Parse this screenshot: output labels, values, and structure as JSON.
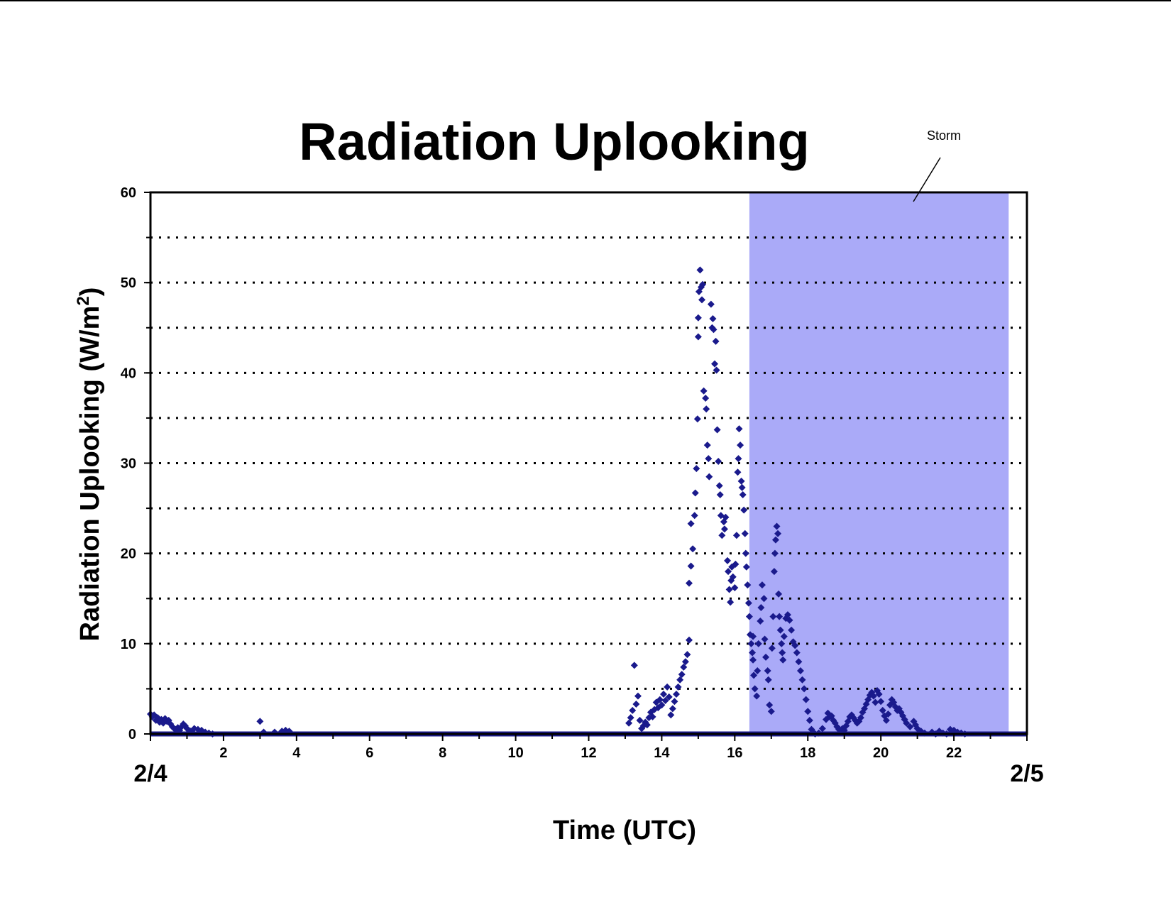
{
  "chart_data": {
    "type": "scatter",
    "title": "Radiation Uplooking",
    "xlabel": "Time (UTC)",
    "ylabel": "Radiation Uplooking (W/m",
    "ylabel_sup": "2",
    "ylabel_end": ")",
    "xlim": [
      0,
      24
    ],
    "ylim": [
      0,
      60
    ],
    "x_ticks": [
      "2",
      "4",
      "6",
      "8",
      "10",
      "12",
      "14",
      "16",
      "18",
      "20",
      "22"
    ],
    "y_ticks": [
      "0",
      "10",
      "20",
      "30",
      "40",
      "50",
      "60"
    ],
    "gridlines_y": [
      5,
      10,
      15,
      20,
      25,
      30,
      35,
      40,
      45,
      50,
      55
    ],
    "grid": "horizontal dotted",
    "start_date": "2/4",
    "end_date": "2/5",
    "marker_color": "#1a1a8c",
    "shaded_region": {
      "label": "Storm",
      "x_start": 16.4,
      "x_end": 23.5,
      "color": "#aaaaf8"
    },
    "series": [
      {
        "marker": "diamond",
        "points": [
          [
            0.0,
            2.2
          ],
          [
            0.05,
            1.9
          ],
          [
            0.1,
            2.1
          ],
          [
            0.15,
            1.5
          ],
          [
            0.2,
            1.8
          ],
          [
            0.25,
            1.3
          ],
          [
            0.3,
            1.6
          ],
          [
            0.35,
            1.2
          ],
          [
            0.4,
            1.7
          ],
          [
            0.45,
            1.4
          ],
          [
            0.5,
            1.5
          ],
          [
            0.55,
            1.1
          ],
          [
            0.6,
            0.8
          ],
          [
            0.65,
            0.6
          ],
          [
            0.7,
            0.5
          ],
          [
            0.75,
            0.7
          ],
          [
            0.8,
            0.4
          ],
          [
            0.85,
            0.8
          ],
          [
            0.9,
            1.1
          ],
          [
            0.95,
            0.9
          ],
          [
            1.0,
            0.6
          ],
          [
            1.05,
            0.4
          ],
          [
            1.1,
            0.3
          ],
          [
            1.2,
            0.6
          ],
          [
            1.3,
            0.5
          ],
          [
            1.4,
            0.4
          ],
          [
            1.5,
            0.2
          ],
          [
            1.6,
            0.1
          ],
          [
            1.7,
            0.0
          ],
          [
            3.0,
            1.4
          ],
          [
            3.1,
            0.2
          ],
          [
            3.4,
            0.2
          ],
          [
            3.6,
            0.3
          ],
          [
            3.7,
            0.4
          ],
          [
            3.8,
            0.3
          ],
          [
            13.1,
            1.2
          ],
          [
            13.15,
            1.8
          ],
          [
            13.2,
            2.6
          ],
          [
            13.25,
            7.6
          ],
          [
            13.3,
            3.3
          ],
          [
            13.35,
            4.2
          ],
          [
            13.4,
            1.5
          ],
          [
            13.45,
            0.6
          ],
          [
            13.5,
            0.9
          ],
          [
            13.55,
            1.3
          ],
          [
            13.6,
            1.0
          ],
          [
            13.65,
            1.8
          ],
          [
            13.7,
            2.4
          ],
          [
            13.75,
            1.9
          ],
          [
            13.8,
            2.7
          ],
          [
            13.85,
            3.5
          ],
          [
            13.9,
            2.9
          ],
          [
            13.95,
            3.8
          ],
          [
            14.0,
            3.2
          ],
          [
            14.05,
            4.4
          ],
          [
            14.1,
            3.7
          ],
          [
            14.15,
            5.2
          ],
          [
            14.2,
            4.1
          ],
          [
            14.25,
            2.1
          ],
          [
            14.3,
            2.8
          ],
          [
            14.35,
            3.6
          ],
          [
            14.4,
            4.4
          ],
          [
            14.45,
            5.2
          ],
          [
            14.5,
            6.0
          ],
          [
            14.55,
            6.6
          ],
          [
            14.6,
            7.4
          ],
          [
            14.65,
            8.0
          ],
          [
            14.7,
            8.8
          ],
          [
            14.75,
            10.4
          ],
          [
            14.75,
            16.7
          ],
          [
            14.8,
            18.6
          ],
          [
            14.85,
            20.5
          ],
          [
            14.8,
            23.3
          ],
          [
            14.9,
            24.2
          ],
          [
            14.92,
            26.7
          ],
          [
            14.95,
            29.4
          ],
          [
            14.98,
            34.9
          ],
          [
            15.0,
            44.0
          ],
          [
            15.0,
            46.1
          ],
          [
            15.02,
            49.0
          ],
          [
            15.05,
            51.4
          ],
          [
            15.08,
            49.5
          ],
          [
            15.1,
            48.1
          ],
          [
            15.12,
            49.8
          ],
          [
            15.15,
            38.0
          ],
          [
            15.2,
            37.2
          ],
          [
            15.22,
            36.0
          ],
          [
            15.25,
            32.0
          ],
          [
            15.28,
            30.5
          ],
          [
            15.3,
            28.5
          ],
          [
            15.35,
            47.6
          ],
          [
            15.38,
            45.0
          ],
          [
            15.4,
            46.0
          ],
          [
            15.42,
            44.8
          ],
          [
            15.45,
            41.0
          ],
          [
            15.48,
            43.5
          ],
          [
            15.5,
            40.3
          ],
          [
            15.52,
            33.7
          ],
          [
            15.55,
            30.2
          ],
          [
            15.58,
            27.5
          ],
          [
            15.6,
            26.5
          ],
          [
            15.62,
            24.2
          ],
          [
            15.65,
            22.0
          ],
          [
            15.7,
            23.5
          ],
          [
            15.72,
            22.7
          ],
          [
            15.75,
            24.0
          ],
          [
            15.8,
            19.2
          ],
          [
            15.82,
            18.0
          ],
          [
            15.85,
            16.0
          ],
          [
            15.88,
            14.6
          ],
          [
            15.9,
            17.0
          ],
          [
            15.92,
            18.5
          ],
          [
            15.95,
            17.4
          ],
          [
            16.0,
            16.2
          ],
          [
            16.02,
            18.8
          ],
          [
            16.05,
            22.0
          ],
          [
            16.08,
            29.0
          ],
          [
            16.1,
            30.5
          ],
          [
            16.12,
            33.8
          ],
          [
            16.15,
            32.0
          ],
          [
            16.18,
            28.0
          ],
          [
            16.2,
            27.3
          ],
          [
            16.22,
            26.5
          ],
          [
            16.25,
            24.8
          ],
          [
            16.28,
            22.2
          ],
          [
            16.3,
            20.0
          ],
          [
            16.32,
            18.5
          ],
          [
            16.35,
            16.5
          ],
          [
            16.38,
            14.5
          ],
          [
            16.4,
            13.0
          ],
          [
            16.42,
            11.0
          ],
          [
            16.45,
            10.0
          ],
          [
            16.48,
            9.0
          ],
          [
            16.5,
            8.2
          ],
          [
            16.5,
            10.8
          ],
          [
            16.52,
            6.5
          ],
          [
            16.55,
            5.0
          ],
          [
            16.6,
            4.2
          ],
          [
            16.62,
            7.0
          ],
          [
            16.65,
            10.0
          ],
          [
            16.7,
            12.5
          ],
          [
            16.72,
            14.0
          ],
          [
            16.75,
            16.5
          ],
          [
            16.8,
            15.0
          ],
          [
            16.82,
            10.5
          ],
          [
            16.85,
            8.5
          ],
          [
            16.9,
            7.0
          ],
          [
            16.92,
            6.0
          ],
          [
            16.95,
            3.2
          ],
          [
            17.0,
            2.5
          ],
          [
            17.02,
            9.5
          ],
          [
            17.05,
            13.0
          ],
          [
            17.08,
            18.0
          ],
          [
            17.1,
            20.0
          ],
          [
            17.12,
            21.5
          ],
          [
            17.15,
            23.0
          ],
          [
            17.18,
            22.2
          ],
          [
            17.2,
            15.5
          ],
          [
            17.22,
            13.0
          ],
          [
            17.25,
            11.5
          ],
          [
            17.28,
            10.0
          ],
          [
            17.3,
            9.0
          ],
          [
            17.32,
            8.2
          ],
          [
            17.35,
            10.8
          ],
          [
            17.4,
            12.8
          ],
          [
            17.45,
            13.2
          ],
          [
            17.5,
            12.6
          ],
          [
            17.55,
            11.5
          ],
          [
            17.6,
            10.2
          ],
          [
            17.65,
            9.8
          ],
          [
            17.7,
            9.0
          ],
          [
            17.75,
            8.0
          ],
          [
            17.8,
            7.0
          ],
          [
            17.85,
            6.0
          ],
          [
            17.9,
            5.0
          ],
          [
            17.95,
            3.8
          ],
          [
            18.0,
            2.5
          ],
          [
            18.05,
            1.5
          ],
          [
            18.1,
            0.5
          ],
          [
            18.15,
            0.2
          ],
          [
            18.2,
            0.0
          ],
          [
            18.3,
            0.1
          ],
          [
            18.4,
            0.6
          ],
          [
            18.5,
            1.6
          ],
          [
            18.55,
            2.3
          ],
          [
            18.6,
            1.9
          ],
          [
            18.65,
            2.0
          ],
          [
            18.7,
            1.5
          ],
          [
            18.75,
            1.2
          ],
          [
            18.8,
            0.8
          ],
          [
            18.85,
            0.5
          ],
          [
            18.9,
            0.3
          ],
          [
            18.95,
            0.6
          ],
          [
            19.0,
            0.4
          ],
          [
            19.05,
            0.9
          ],
          [
            19.1,
            1.4
          ],
          [
            19.15,
            1.9
          ],
          [
            19.2,
            2.1
          ],
          [
            19.25,
            1.8
          ],
          [
            19.3,
            1.5
          ],
          [
            19.35,
            1.2
          ],
          [
            19.4,
            1.4
          ],
          [
            19.45,
            1.8
          ],
          [
            19.5,
            2.4
          ],
          [
            19.55,
            2.8
          ],
          [
            19.6,
            3.3
          ],
          [
            19.65,
            3.8
          ],
          [
            19.7,
            4.3
          ],
          [
            19.75,
            4.6
          ],
          [
            19.8,
            4.2
          ],
          [
            19.85,
            3.5
          ],
          [
            19.9,
            4.8
          ],
          [
            19.95,
            4.4
          ],
          [
            20.0,
            3.6
          ],
          [
            20.05,
            2.6
          ],
          [
            20.1,
            2.0
          ],
          [
            20.15,
            1.5
          ],
          [
            20.2,
            2.2
          ],
          [
            20.25,
            3.2
          ],
          [
            20.3,
            3.8
          ],
          [
            20.35,
            3.5
          ],
          [
            20.4,
            3.0
          ],
          [
            20.45,
            2.6
          ],
          [
            20.5,
            2.8
          ],
          [
            20.55,
            2.4
          ],
          [
            20.6,
            2.0
          ],
          [
            20.65,
            1.6
          ],
          [
            20.7,
            1.2
          ],
          [
            20.8,
            0.8
          ],
          [
            20.9,
            1.4
          ],
          [
            20.95,
            1.0
          ],
          [
            21.0,
            0.6
          ],
          [
            21.1,
            0.3
          ],
          [
            21.2,
            0.1
          ],
          [
            21.4,
            0.2
          ],
          [
            21.5,
            0.0
          ],
          [
            21.6,
            0.3
          ],
          [
            21.7,
            0.1
          ],
          [
            21.8,
            0.0
          ],
          [
            21.9,
            0.5
          ],
          [
            22.0,
            0.4
          ],
          [
            22.1,
            0.2
          ],
          [
            22.2,
            0.1
          ],
          [
            22.3,
            0.0
          ]
        ]
      }
    ]
  }
}
